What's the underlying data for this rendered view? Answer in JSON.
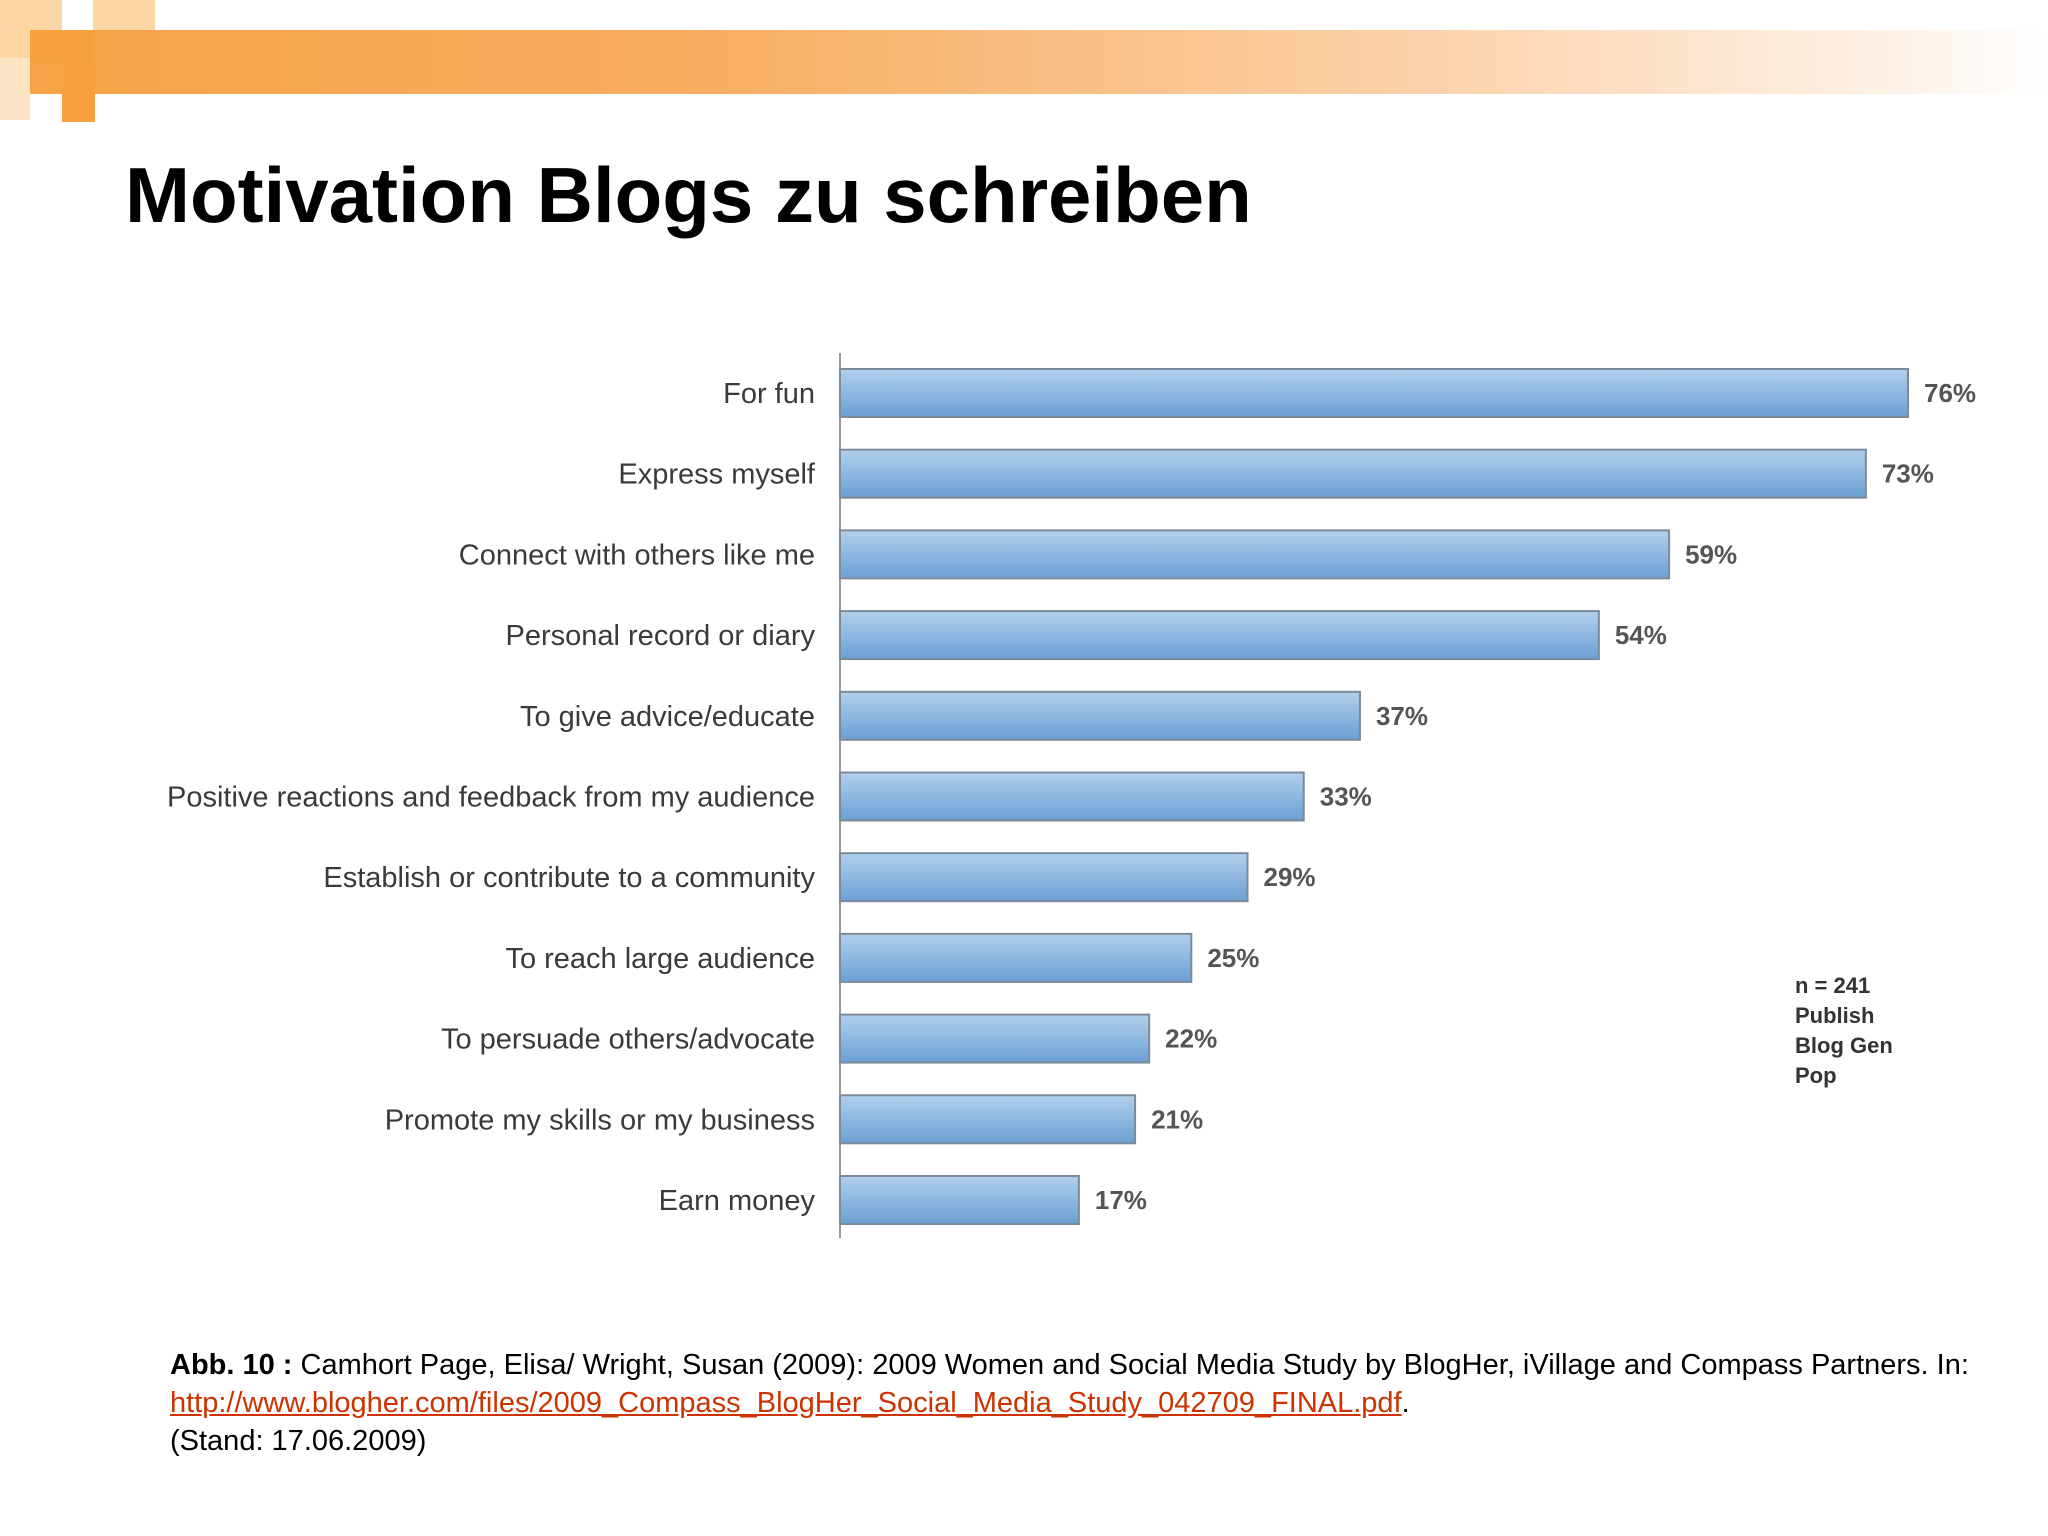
{
  "slide": {
    "title": "Motivation Blogs zu schreiben"
  },
  "chart_data": {
    "type": "bar",
    "orientation": "horizontal",
    "categories": [
      "For fun",
      "Express myself",
      "Connect with others like me",
      "Personal record or diary",
      "To give advice/educate",
      "Positive reactions and feedback from my audience",
      "Establish or contribute to a community",
      "To reach large audience",
      "To persuade others/advocate",
      "Promote my skills or my business",
      "Earn money"
    ],
    "values": [
      76,
      73,
      59,
      54,
      37,
      33,
      29,
      25,
      22,
      21,
      17
    ],
    "value_labels": [
      "76%",
      "73%",
      "59%",
      "54%",
      "37%",
      "33%",
      "29%",
      "25%",
      "22%",
      "21%",
      "17%"
    ],
    "unit": "%",
    "note": [
      "n = 241",
      "Publish",
      "Blog Gen",
      "Pop"
    ],
    "grid": false,
    "legend": "none",
    "colors": {
      "bar_top": "#b2d0ec",
      "bar_bottom": "#6b9fd4",
      "bar_stroke": "#7c8a99",
      "axis": "#999999"
    }
  },
  "caption": {
    "label": "Abb. 10 :",
    "text": " Camhort Page, Elisa/ Wright, Susan (2009): 2009 Women and Social  Media Study by BlogHer, iVillage and Compass Partners. In:  ",
    "link": "http://www.blogher.com/files/2009_Compass_BlogHer_Social_Media_Study_042709_FINAL.pdf",
    "after_link": ".",
    "stand": "(Stand: 17.06.2009)"
  },
  "decor": {
    "accent": "#f7a13c"
  }
}
